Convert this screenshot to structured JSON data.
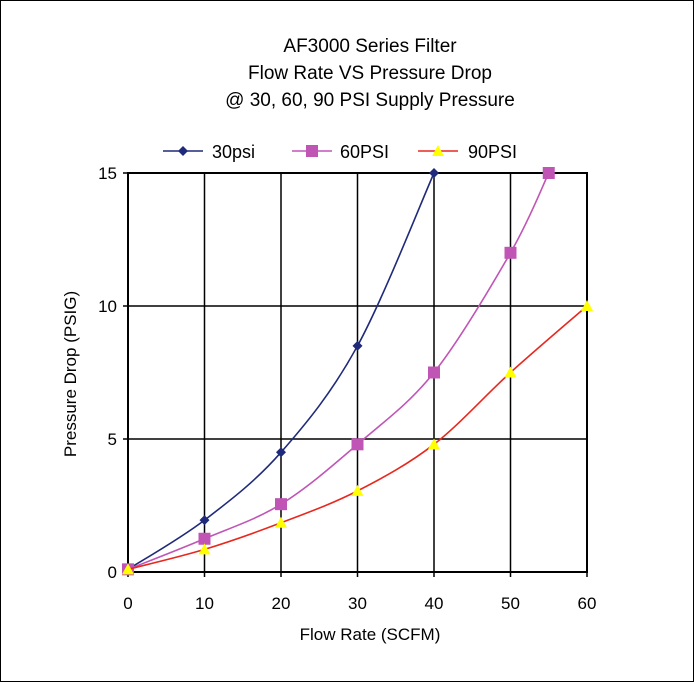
{
  "chart_data": {
    "type": "line",
    "title": [
      "AF3000 Series Filter",
      "Flow Rate VS Pressure Drop",
      "@ 30, 60, 90 PSI Supply Pressure"
    ],
    "xlabel": "Flow Rate (SCFM)",
    "ylabel": "Pressure Drop (PSIG)",
    "xlim": [
      0,
      60
    ],
    "ylim": [
      0,
      15
    ],
    "x_ticks": [
      0,
      10,
      20,
      30,
      40,
      50,
      60
    ],
    "y_ticks": [
      0,
      5,
      10,
      15
    ],
    "x_tick_labels": [
      "0",
      "10",
      "20",
      "30",
      "40",
      "50",
      "60"
    ],
    "y_tick_labels": [
      "0",
      "5",
      "10",
      "15"
    ],
    "grid": true,
    "legend_position": "top",
    "series": [
      {
        "name": "30psi",
        "color": "#1f2a7a",
        "marker": "diamond",
        "x": [
          0,
          10,
          20,
          30,
          40
        ],
        "y": [
          0.1,
          1.95,
          4.5,
          8.5,
          15
        ]
      },
      {
        "name": "60PSI",
        "color": "#c055b5",
        "marker": "square",
        "x": [
          0,
          10,
          20,
          30,
          40,
          50,
          55
        ],
        "y": [
          0.1,
          1.25,
          2.55,
          4.8,
          7.5,
          12,
          15
        ]
      },
      {
        "name": "90PSI",
        "color": "#e8281e",
        "marker_color": "#ffff00",
        "marker": "triangle",
        "x": [
          0,
          10,
          20,
          30,
          40,
          50,
          60
        ],
        "y": [
          0.1,
          0.85,
          1.85,
          3.05,
          4.8,
          7.5,
          10
        ]
      }
    ]
  }
}
